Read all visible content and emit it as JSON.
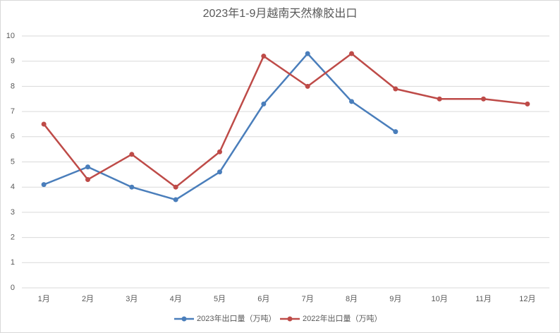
{
  "chart_data": {
    "type": "line",
    "title": "2023年1-9月越南天然橡胶出口",
    "categories": [
      "1月",
      "2月",
      "3月",
      "4月",
      "5月",
      "6月",
      "7月",
      "8月",
      "9月",
      "10月",
      "11月",
      "12月"
    ],
    "series": [
      {
        "name": "2023年出口量（万吨）",
        "color": "#4a7ebb",
        "values": [
          4.1,
          4.8,
          4.0,
          3.5,
          4.6,
          7.3,
          9.3,
          7.4,
          6.2,
          null,
          null,
          null
        ]
      },
      {
        "name": "2022年出口量（万吨）",
        "color": "#be4b48",
        "values": [
          6.5,
          4.3,
          5.3,
          4.0,
          5.4,
          9.2,
          8.0,
          9.3,
          7.9,
          7.5,
          7.5,
          7.3
        ]
      }
    ],
    "ylim": [
      0,
      10
    ],
    "yticks": [
      0,
      1,
      2,
      3,
      4,
      5,
      6,
      7,
      8,
      9,
      10
    ],
    "grid": true,
    "legend": "bottom"
  }
}
